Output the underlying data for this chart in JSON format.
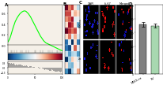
{
  "panel_a_label": "A",
  "panel_b_label": "B",
  "panel_c_label": "C",
  "panel_d_label": "D",
  "gsea_green_x": [
    0,
    2,
    4,
    6,
    8,
    10,
    12,
    14,
    16,
    18,
    20,
    22,
    24,
    26,
    28,
    30,
    32,
    34,
    36,
    38,
    40,
    42,
    44,
    46,
    48,
    50,
    52,
    54,
    56,
    58,
    60,
    62,
    64,
    66,
    68,
    70,
    72,
    74,
    76,
    78,
    80,
    82,
    84,
    86,
    88,
    90,
    92,
    94,
    96,
    98,
    100
  ],
  "gsea_green_y": [
    0.05,
    0.08,
    0.12,
    0.18,
    0.25,
    0.32,
    0.38,
    0.44,
    0.48,
    0.52,
    0.55,
    0.58,
    0.6,
    0.62,
    0.63,
    0.64,
    0.64,
    0.63,
    0.61,
    0.59,
    0.56,
    0.53,
    0.49,
    0.45,
    0.41,
    0.37,
    0.33,
    0.29,
    0.25,
    0.21,
    0.17,
    0.14,
    0.11,
    0.08,
    0.06,
    0.04,
    0.03,
    0.02,
    0.01,
    0.0,
    -0.01,
    -0.02,
    -0.03,
    -0.04,
    -0.05,
    -0.06,
    -0.07,
    -0.08,
    -0.09,
    -0.1,
    -0.11
  ],
  "heatmap_colors_rows": 12,
  "heatmap_colors_cols": 5,
  "bar_values": [
    72,
    70
  ],
  "bar_colors": [
    "#808080",
    "#a8d8b0"
  ],
  "bar_labels": [
    "MEK5-ca",
    "EV"
  ],
  "bar_ylabel": "%",
  "bar_ylim": [
    0,
    100
  ],
  "bar_yticks": [
    0,
    20,
    40,
    60,
    80,
    100
  ],
  "bg_color": "#f5f0e8",
  "col_titles": [
    "DAPI",
    "ki-67",
    "Merged"
  ],
  "row_labels": [
    "MEK5-ca",
    "EV"
  ]
}
